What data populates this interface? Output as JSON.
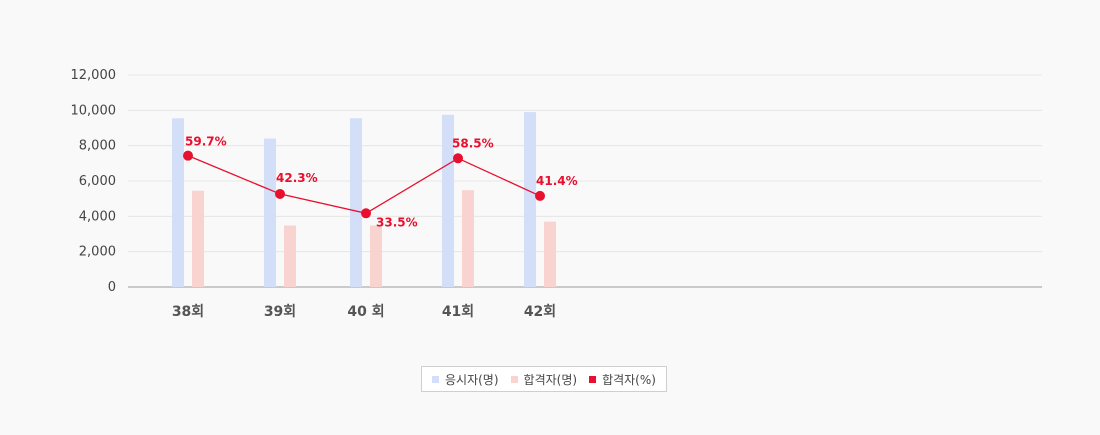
{
  "chart_data": {
    "type": "bar",
    "categories": [
      "38회",
      "39회",
      "40 회",
      "41회",
      "42회"
    ],
    "series": [
      {
        "name": "응시자(명)",
        "type": "bar",
        "values": [
          9550,
          8400,
          9550,
          9750,
          9900
        ],
        "color": "#d3def8"
      },
      {
        "name": "합격자(명)",
        "type": "bar",
        "values": [
          5450,
          3480,
          3480,
          5480,
          3700
        ],
        "color": "#f8d3d0"
      },
      {
        "name": "합격자(%)",
        "type": "line",
        "values": [
          59.7,
          42.3,
          33.5,
          58.5,
          41.4
        ],
        "labels": [
          "59.7%",
          "42.3%",
          "33.5%",
          "58.5%",
          "41.4%"
        ],
        "color": "#e8102e"
      }
    ],
    "y_ticks": [
      "0",
      "2,000",
      "4,000",
      "6,000",
      "8,000",
      "10,000",
      "12,000"
    ],
    "ylim": [
      0,
      12000
    ],
    "grid": true,
    "legend_position": "bottom-center"
  }
}
